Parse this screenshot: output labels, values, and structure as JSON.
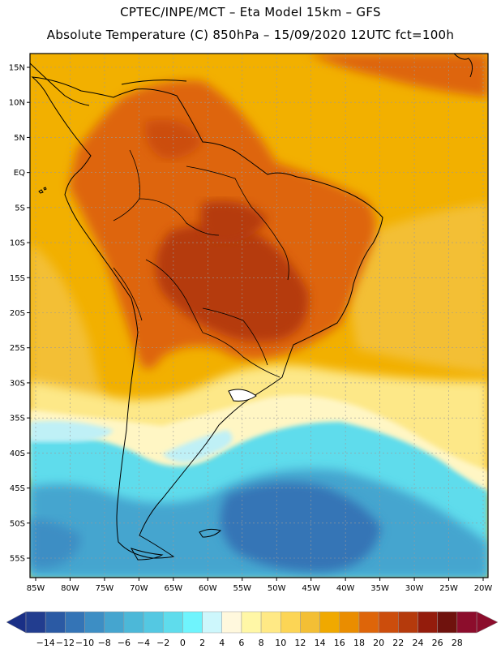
{
  "header": {
    "title_line1": "CPTEC/INPE/MCT –  Eta Model 15km – GFS",
    "title_line2": "Absolute Temperature (C) 850hPa – 15/09/2020 12UTC fct=100h"
  },
  "map": {
    "lon_ticks": [
      "85W",
      "80W",
      "75W",
      "70W",
      "65W",
      "60W",
      "55W",
      "50W",
      "45W",
      "40W",
      "35W",
      "30W",
      "25W",
      "20W"
    ],
    "lat_ticks": [
      "15N",
      "10N",
      "5N",
      "EQ",
      "5S",
      "10S",
      "15S",
      "20S",
      "25S",
      "30S",
      "35S",
      "40S",
      "45S",
      "50S",
      "55S"
    ],
    "colors": {
      "ocean_warm": "#f2a900",
      "land_hot": "#d2620b",
      "land_hotter": "#b8440a",
      "mid": "#f0c23a",
      "yellow": "#fde888",
      "light_yellow": "#fff6c4",
      "cyan_light": "#bff0f6",
      "cyan": "#5fdcea",
      "blue_mid": "#44a6d2",
      "blue_dark": "#2f73b4"
    }
  },
  "colorbar": {
    "labels": [
      "-14",
      "-12",
      "-10",
      "-8",
      "-6",
      "-4",
      "-2",
      "0",
      "2",
      "4",
      "6",
      "8",
      "10",
      "12",
      "14",
      "16",
      "18",
      "20",
      "22",
      "24",
      "26",
      "28"
    ],
    "colors": [
      "#223d8f",
      "#2b5aa4",
      "#3474b6",
      "#3d8ec4",
      "#45a5cf",
      "#4cb8d8",
      "#54c8e2",
      "#5fdcec",
      "#6ff4fd",
      "#cdf7fc",
      "#fff8dd",
      "#fff7a6",
      "#ffe985",
      "#fcd555",
      "#f3bf35",
      "#f0a900",
      "#ea8d00",
      "#de6509",
      "#cc4d0c",
      "#b53a0c",
      "#941c0c",
      "#6f120d",
      "#8c0d2c"
    ],
    "under_color": "#1a2f86",
    "over_color": "#8c0d2c"
  }
}
